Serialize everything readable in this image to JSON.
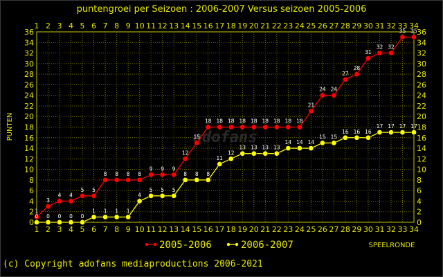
{
  "chart_data": {
    "type": "line",
    "title": "puntengroei per Seizoen : 2006-2007 Versus seizoen 2005-2006",
    "ylabel": "PUNTEN",
    "xlabel": "SPEELRONDE",
    "x": [
      1,
      2,
      3,
      4,
      5,
      6,
      7,
      8,
      9,
      10,
      11,
      12,
      13,
      14,
      15,
      16,
      17,
      18,
      19,
      20,
      21,
      22,
      23,
      24,
      25,
      26,
      27,
      28,
      29,
      30,
      31,
      32,
      33,
      34
    ],
    "xlim": [
      1,
      34
    ],
    "ylim": [
      0,
      36
    ],
    "yticks": [
      0,
      2,
      4,
      6,
      8,
      10,
      12,
      14,
      16,
      18,
      20,
      22,
      24,
      26,
      28,
      30,
      32,
      34,
      36
    ],
    "grid": true,
    "legend": "bottom-center",
    "series": [
      {
        "name": "2005-2006",
        "color": "#ff0000",
        "line_color": "#ff0000",
        "values": [
          1,
          3,
          4,
          4,
          5,
          5,
          8,
          8,
          8,
          8,
          9,
          9,
          9,
          12,
          15,
          18,
          18,
          18,
          18,
          18,
          18,
          18,
          18,
          18,
          21,
          24,
          24,
          27,
          28,
          31,
          32,
          32,
          35,
          35
        ]
      },
      {
        "name": "2006-2007",
        "color": "#ffff00",
        "line_color": "#ffff00",
        "values": [
          0,
          0,
          0,
          0,
          0,
          1,
          1,
          1,
          1,
          4,
          5,
          5,
          5,
          8,
          8,
          8,
          11,
          12,
          13,
          13,
          13,
          13,
          14,
          14,
          14,
          15,
          15,
          16,
          16,
          16,
          17,
          17,
          17,
          17
        ]
      }
    ]
  },
  "watermark": "adofans",
  "copyright": "(c) Copyright adofans mediaproductions 2006-2021",
  "colors": {
    "background": "#000000",
    "text": "#e8e800",
    "plot_border": "#c8c800",
    "grid": "#707000"
  }
}
